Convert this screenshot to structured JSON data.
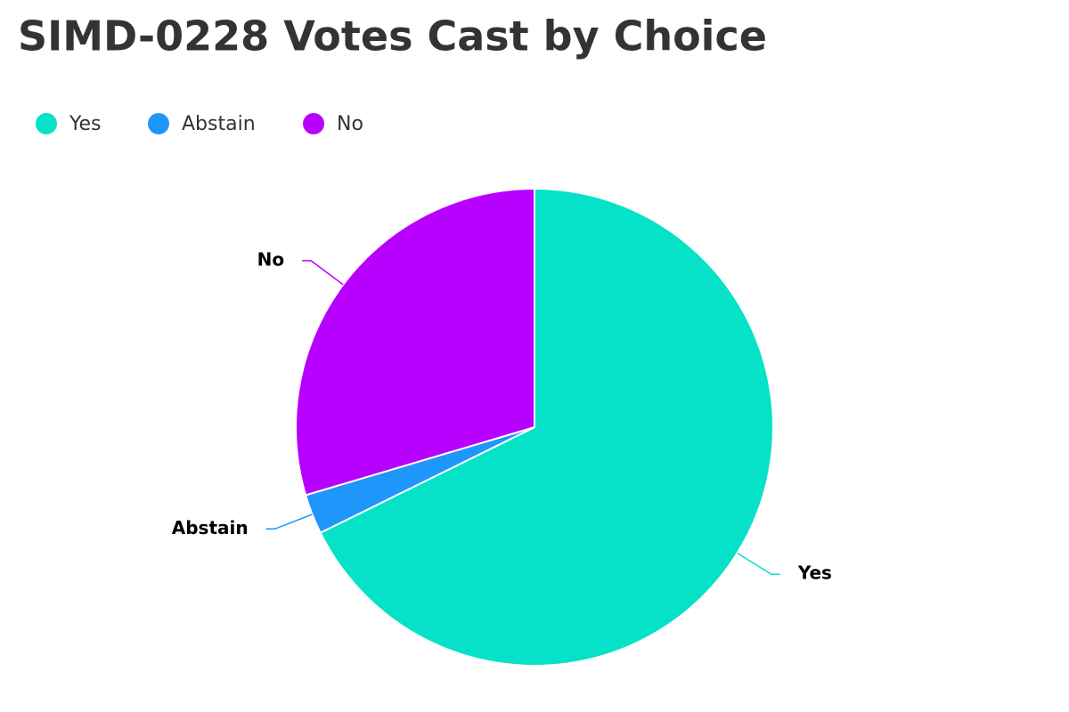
{
  "chart_data": {
    "type": "pie",
    "title": "SIMD-0228 Votes Cast by Choice",
    "categories": [
      "Yes",
      "Abstain",
      "No"
    ],
    "values": [
      67.7,
      2.7,
      29.6
    ],
    "colors": [
      "#05e2c8",
      "#1f96fa",
      "#b800ff"
    ],
    "legend": "top-left"
  }
}
